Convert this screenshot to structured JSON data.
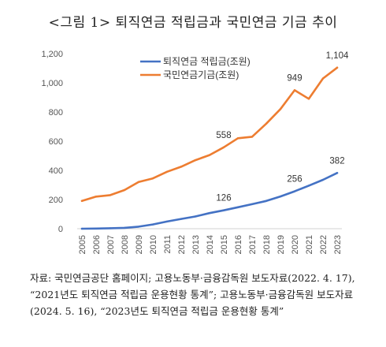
{
  "title": "<그림 1> 퇴직연금 적립금과 국민연금 기금 추이",
  "source_text": "자료: 국민연금공단 홈페이지; 고용노동부·금융감독원 보도자료(2022. 4. 17), “2021년도 퇴직연금 적립금 운용현황 통계”; 고용노동부·금융감독원 보도자료(2024. 5. 16), “2023년도 퇴직연금 적립금 운용현황 통계”",
  "chart_data": {
    "type": "line",
    "title": "",
    "xlabel": "",
    "ylabel": "",
    "ylim": [
      0,
      1200
    ],
    "yticks": [
      "0",
      "200",
      "400",
      "600",
      "800",
      "1,000",
      "1,200"
    ],
    "grid": false,
    "legend_position": "top-left",
    "x": [
      "2005",
      "2006",
      "2007",
      "2008",
      "2009",
      "2010",
      "2011",
      "2012",
      "2013",
      "2014",
      "2015",
      "2016",
      "2017",
      "2018",
      "2019",
      "2020",
      "2021",
      "2022",
      "2023"
    ],
    "series": [
      {
        "name": "퇴직연금 적립금(조원)",
        "color": "#4472C4",
        "values": [
          0,
          1,
          3,
          6,
          14,
          29,
          49,
          67,
          84,
          107,
          126,
          147,
          168,
          190,
          221,
          256,
          295,
          335,
          382
        ],
        "labels": [
          {
            "index": 10,
            "text": "126"
          },
          {
            "index": 15,
            "text": "256"
          },
          {
            "index": 18,
            "text": "382"
          }
        ]
      },
      {
        "name": "국민연금기금(조원)",
        "color": "#ED7D31",
        "values": [
          190,
          220,
          230,
          265,
          320,
          345,
          390,
          425,
          470,
          505,
          558,
          620,
          630,
          720,
          820,
          949,
          890,
          1030,
          1104
        ],
        "labels": [
          {
            "index": 10,
            "text": "558"
          },
          {
            "index": 15,
            "text": "949"
          },
          {
            "index": 18,
            "text": "1,104"
          }
        ]
      }
    ]
  }
}
